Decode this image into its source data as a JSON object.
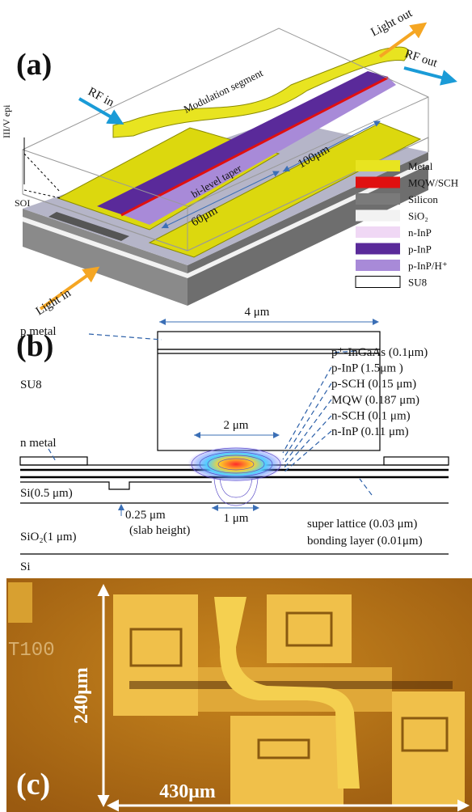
{
  "panel_a": {
    "label": "(a)",
    "rf_in": "RF in",
    "light_out": "Light out",
    "rf_out": "RF out",
    "modulation_segment": "Modulation segment",
    "iii_v_epi": "III/V epi",
    "soi": "SOI",
    "bi_level_taper": "bi-level taper",
    "length_100": "100μm",
    "length_60": "60μm",
    "light_in": "Light in",
    "legend": [
      {
        "label": "Metal",
        "color": "#e8e420"
      },
      {
        "label": "MQW/SCH",
        "color": "#e01010"
      },
      {
        "label": "Silicon",
        "color": "#7a7a7a"
      },
      {
        "label": "SiO₂",
        "color": "#f2f2f2"
      },
      {
        "label": "n-InP",
        "color": "#f0d8f5"
      },
      {
        "label": "p-InP",
        "color": "#5a2a9a"
      },
      {
        "label": "p-InP/H⁺",
        "color": "#a88ad8"
      },
      {
        "label": "SU8",
        "color": "#ffffff"
      }
    ]
  },
  "panel_b": {
    "label": "(b)",
    "width_mesa": "4 μm",
    "p_metal": "p metal",
    "su8": "SU8",
    "width_2": "2 μm",
    "n_metal": "n metal",
    "si_layer": "Si(0.5 μm)",
    "slab_thickness": "0.25 μm",
    "slab_note": "(slab height)",
    "width_1": "1 μm",
    "sio2": "SiO₂(1 μm)",
    "si": "Si",
    "layers": [
      "p⁺-InGaAs (0.1μm)",
      "p-InP (1.5μm )",
      "p-SCH (0.15 μm)",
      "MQW (0.187 μm)",
      "n-SCH (0.1 μm)",
      "n-InP  (0.11 μm)"
    ],
    "super_lattice": "super lattice (0.03 μm)",
    "bonding_layer": "bonding layer (0.01μm)"
  },
  "panel_c": {
    "label": "(c)",
    "height": "240μm",
    "width": "430μm",
    "marking": "T100"
  }
}
